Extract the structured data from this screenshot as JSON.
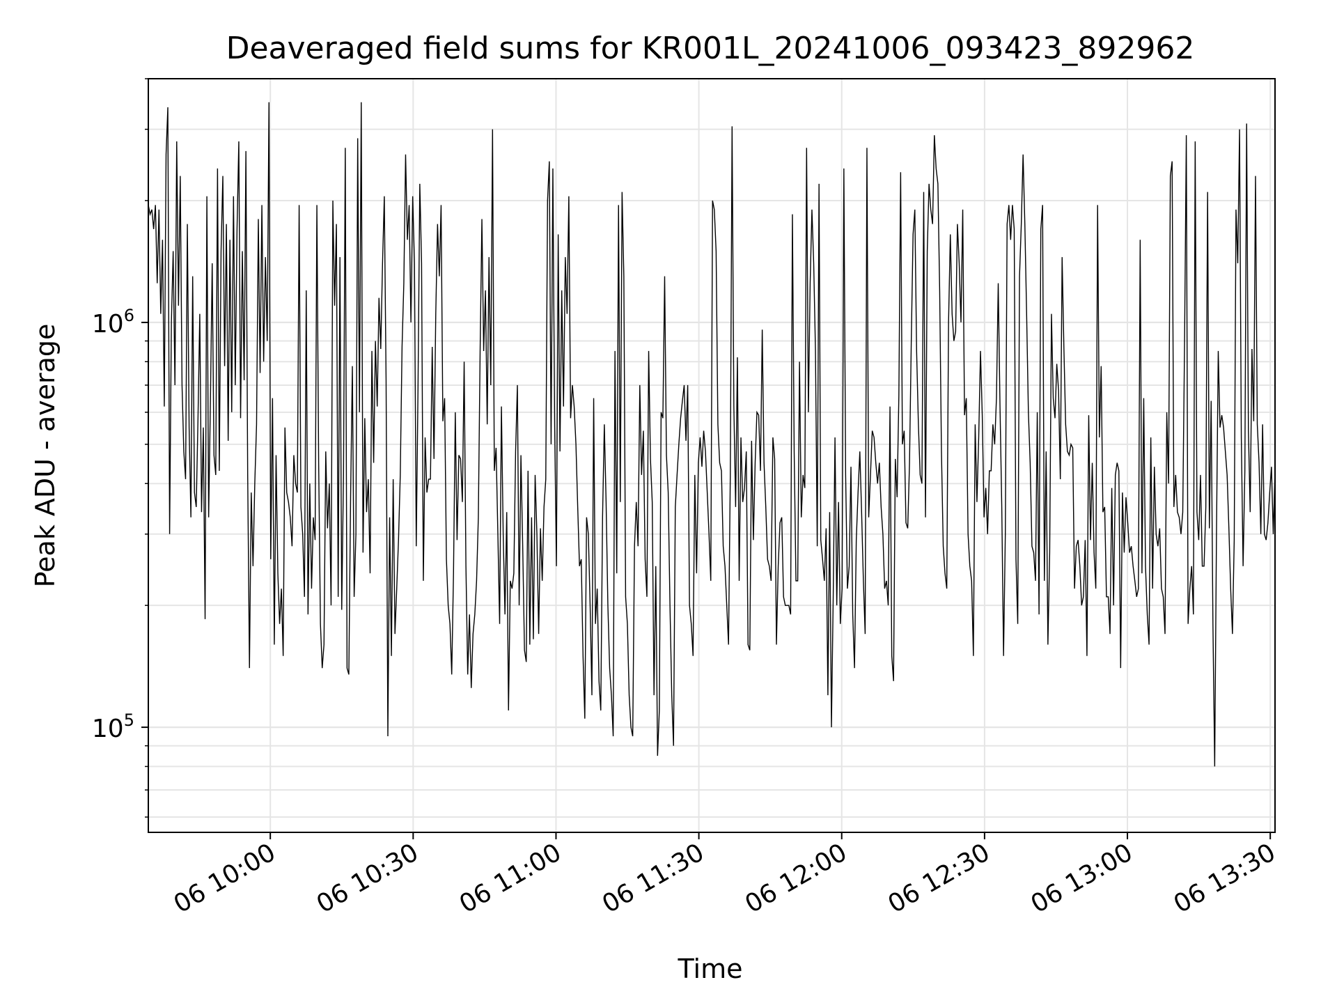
{
  "chart_data": {
    "type": "line",
    "title": "Deaveraged field sums for KR001L_20241006_093423_892962",
    "xlabel": "Time",
    "ylabel": "Peak ADU - average",
    "yscale": "log",
    "ylim": [
      55000,
      4000000
    ],
    "xlim": [
      "2024-10-06 09:34:23",
      "2024-10-06 13:31:00"
    ],
    "x_tick_labels": [
      "06 10:00",
      "06 10:30",
      "06 11:00",
      "06 11:30",
      "06 12:00",
      "06 12:30",
      "06 13:00",
      "06 13:30"
    ],
    "y_tick_labels": [
      {
        "base": "10",
        "exp": "5"
      },
      {
        "base": "10",
        "exp": "6"
      }
    ],
    "grid": true,
    "line_color": "#000000",
    "series": [
      {
        "x_start": "2024-10-06 09:34:23",
        "x_end": "2024-10-06 13:31:00",
        "values": [
          1950000,
          1850000,
          1900000,
          1700000,
          1950000,
          1250000,
          1900000,
          1050000,
          1600000,
          620000,
          2600000,
          3400000,
          300000,
          1000000,
          1500000,
          700000,
          2800000,
          1100000,
          2300000,
          700000,
          480000,
          410000,
          1750000,
          550000,
          330000,
          1300000,
          380000,
          350000,
          580000,
          1050000,
          340000,
          550000,
          185000,
          2050000,
          330000,
          640000,
          1400000,
          470000,
          420000,
          2400000,
          430000,
          1500000,
          2300000,
          780000,
          1750000,
          510000,
          1600000,
          600000,
          2050000,
          700000,
          1700000,
          2800000,
          580000,
          1500000,
          720000,
          2650000,
          420000,
          140000,
          380000,
          250000,
          400000,
          560000,
          1800000,
          750000,
          1950000,
          800000,
          1450000,
          900000,
          3500000,
          260000,
          650000,
          160000,
          470000,
          240000,
          180000,
          220000,
          150000,
          550000,
          380000,
          360000,
          330000,
          280000,
          470000,
          400000,
          380000,
          1950000,
          350000,
          300000,
          210000,
          1200000,
          190000,
          400000,
          220000,
          330000,
          290000,
          1950000,
          450000,
          180000,
          140000,
          160000,
          480000,
          310000,
          400000,
          200000,
          2000000,
          1100000,
          1750000,
          210000,
          1450000,
          195000,
          420000,
          2700000,
          140000,
          135000,
          370000,
          780000,
          210000,
          300000,
          2850000,
          600000,
          3500000,
          270000,
          580000,
          340000,
          410000,
          240000,
          850000,
          450000,
          900000,
          620000,
          1150000,
          860000,
          1400000,
          2050000,
          720000,
          95000,
          330000,
          150000,
          410000,
          170000,
          220000,
          290000,
          420000,
          870000,
          1250000,
          2600000,
          1600000,
          1950000,
          1000000,
          2050000,
          1400000,
          280000,
          690000,
          2200000,
          1400000,
          230000,
          520000,
          380000,
          410000,
          410000,
          870000,
          460000,
          1050000,
          1750000,
          1300000,
          1950000,
          570000,
          650000,
          260000,
          200000,
          180000,
          135000,
          240000,
          600000,
          290000,
          470000,
          460000,
          360000,
          800000,
          250000,
          135000,
          190000,
          125000,
          170000,
          190000,
          230000,
          330000,
          850000,
          1800000,
          850000,
          1200000,
          560000,
          1450000,
          700000,
          3000000,
          430000,
          490000,
          300000,
          180000,
          620000,
          300000,
          190000,
          340000,
          110000,
          230000,
          220000,
          240000,
          480000,
          700000,
          200000,
          470000,
          280000,
          155000,
          145000,
          430000,
          160000,
          330000,
          165000,
          420000,
          300000,
          170000,
          310000,
          230000,
          350000,
          410000,
          2000000,
          2500000,
          500000,
          2400000,
          560000,
          250000,
          1650000,
          480000,
          1200000,
          620000,
          1450000,
          1050000,
          2050000,
          580000,
          700000,
          620000,
          500000,
          350000,
          250000,
          260000,
          150000,
          105000,
          330000,
          300000,
          200000,
          120000,
          650000,
          180000,
          220000,
          130000,
          110000,
          330000,
          560000,
          360000,
          200000,
          140000,
          120000,
          95000,
          850000,
          240000,
          1950000,
          360000,
          2100000,
          1300000,
          210000,
          180000,
          120000,
          100000,
          95000,
          280000,
          360000,
          280000,
          700000,
          420000,
          540000,
          260000,
          210000,
          850000,
          460000,
          360000,
          120000,
          250000,
          85000,
          110000,
          600000,
          580000,
          1300000,
          470000,
          380000,
          200000,
          120000,
          90000,
          350000,
          420000,
          500000,
          580000,
          640000,
          700000,
          510000,
          700000,
          200000,
          180000,
          150000,
          420000,
          240000,
          450000,
          520000,
          440000,
          540000,
          480000,
          380000,
          300000,
          230000,
          2000000,
          1900000,
          1500000,
          560000,
          450000,
          430000,
          280000,
          250000,
          200000,
          160000,
          420000,
          3050000,
          620000,
          350000,
          820000,
          230000,
          520000,
          360000,
          390000,
          480000,
          160000,
          155000,
          510000,
          290000,
          450000,
          600000,
          590000,
          430000,
          960000,
          450000,
          350000,
          260000,
          250000,
          230000,
          520000,
          460000,
          160000,
          250000,
          320000,
          330000,
          210000,
          200000,
          200000,
          200000,
          190000,
          1850000,
          480000,
          230000,
          230000,
          800000,
          330000,
          420000,
          390000,
          2700000,
          600000,
          1250000,
          1900000,
          1400000,
          850000,
          280000,
          2200000,
          290000,
          260000,
          230000,
          310000,
          120000,
          340000,
          100000,
          210000,
          520000,
          200000,
          360000,
          180000,
          220000,
          2400000,
          420000,
          220000,
          250000,
          440000,
          190000,
          140000,
          290000,
          380000,
          480000,
          340000,
          230000,
          170000,
          2700000,
          330000,
          420000,
          540000,
          520000,
          450000,
          400000,
          450000,
          350000,
          300000,
          220000,
          230000,
          200000,
          620000,
          150000,
          130000,
          460000,
          370000,
          660000,
          2350000,
          500000,
          540000,
          320000,
          310000,
          450000,
          900000,
          1650000,
          1900000,
          850000,
          560000,
          420000,
          400000,
          2100000,
          330000,
          1500000,
          2200000,
          1900000,
          1750000,
          2900000,
          2400000,
          2200000,
          1200000,
          480000,
          280000,
          240000,
          220000,
          1000000,
          1650000,
          1050000,
          900000,
          950000,
          1750000,
          1400000,
          1000000,
          1900000,
          590000,
          650000,
          300000,
          250000,
          230000,
          150000,
          560000,
          360000,
          520000,
          850000,
          590000,
          330000,
          390000,
          300000,
          430000,
          430000,
          560000,
          500000,
          650000,
          1250000,
          620000,
          350000,
          150000,
          300000,
          1750000,
          1950000,
          1600000,
          1950000,
          1700000,
          260000,
          180000,
          1300000,
          1750000,
          2600000,
          1750000,
          1050000,
          600000,
          450000,
          280000,
          270000,
          230000,
          600000,
          190000,
          1700000,
          1950000,
          230000,
          480000,
          160000,
          270000,
          1050000,
          650000,
          580000,
          790000,
          680000,
          410000,
          1450000,
          870000,
          560000,
          480000,
          470000,
          500000,
          490000,
          220000,
          280000,
          290000,
          250000,
          200000,
          210000,
          290000,
          150000,
          590000,
          290000,
          450000,
          270000,
          220000,
          1950000,
          520000,
          780000,
          340000,
          350000,
          210000,
          210000,
          170000,
          390000,
          200000,
          420000,
          450000,
          430000,
          140000,
          380000,
          270000,
          370000,
          320000,
          270000,
          280000,
          250000,
          230000,
          210000,
          220000,
          1600000,
          240000,
          650000,
          250000,
          190000,
          160000,
          520000,
          220000,
          440000,
          300000,
          280000,
          310000,
          220000,
          210000,
          170000,
          600000,
          400000,
          2300000,
          2500000,
          350000,
          420000,
          340000,
          330000,
          300000,
          340000,
          880000,
          2900000,
          180000,
          220000,
          250000,
          190000,
          2800000,
          340000,
          290000,
          420000,
          250000,
          250000,
          350000,
          2100000,
          310000,
          640000,
          180000,
          80000,
          300000,
          850000,
          550000,
          590000,
          550000,
          480000,
          420000,
          310000,
          220000,
          170000,
          290000,
          1900000,
          1400000,
          3000000,
          520000,
          250000,
          430000,
          3100000,
          540000,
          340000,
          860000,
          570000,
          2300000,
          560000,
          450000,
          300000,
          560000,
          300000,
          290000,
          320000,
          380000,
          440000,
          300000,
          430000
        ]
      }
    ]
  }
}
